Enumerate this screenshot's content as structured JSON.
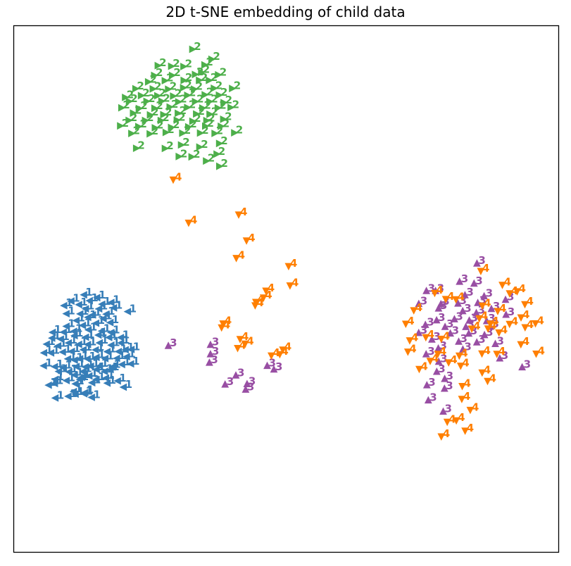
{
  "chart_data": {
    "type": "scatter",
    "title": "2D t-SNE embedding of child data",
    "xlabel": "",
    "ylabel": "",
    "xticks": "none",
    "yticks": "none",
    "grid": false,
    "xlim": [
      0,
      1
    ],
    "ylim": [
      0,
      1
    ],
    "legend": "none",
    "series": [
      {
        "label_text": "1",
        "color": "#377eb8",
        "marker": "triangle-left",
        "points": [
          [
            0.1428,
            0.7061
          ],
          [
            0.0759,
            0.7073
          ],
          [
            0.0997,
            0.7042
          ],
          [
            0.1289,
            0.6992
          ],
          [
            0.1129,
            0.6999
          ],
          [
            0.1306,
            0.6969
          ],
          [
            0.1097,
            0.695
          ],
          [
            0.2013,
            0.6868
          ],
          [
            0.0637,
            0.6829
          ],
          [
            0.0749,
            0.6796
          ],
          [
            0.1129,
            0.6803
          ],
          [
            0.0759,
            0.6719
          ],
          [
            0.1435,
            0.6783
          ],
          [
            0.1716,
            0.679
          ],
          [
            0.1905,
            0.6748
          ],
          [
            0.0965,
            0.6741
          ],
          [
            0.1211,
            0.6722
          ],
          [
            0.1515,
            0.672
          ],
          [
            0.1688,
            0.6695
          ],
          [
            0.1245,
            0.6681
          ],
          [
            0.1383,
            0.6653
          ],
          [
            0.1115,
            0.6636
          ],
          [
            0.0822,
            0.6567
          ],
          [
            0.1013,
            0.6576
          ],
          [
            0.1271,
            0.6569
          ],
          [
            0.1517,
            0.6531
          ],
          [
            0.1668,
            0.6569
          ],
          [
            0.1774,
            0.6533
          ],
          [
            0.0546,
            0.6461
          ],
          [
            0.0749,
            0.6478
          ],
          [
            0.0912,
            0.6499
          ],
          [
            0.1147,
            0.6475
          ],
          [
            0.1313,
            0.6483
          ],
          [
            0.1412,
            0.647
          ],
          [
            0.1576,
            0.6465
          ],
          [
            0.1802,
            0.6485
          ],
          [
            0.1983,
            0.6437
          ],
          [
            0.2148,
            0.6425
          ],
          [
            0.0991,
            0.6329
          ],
          [
            0.1115,
            0.6353
          ],
          [
            0.1214,
            0.6327
          ],
          [
            0.1351,
            0.6329
          ],
          [
            0.1515,
            0.6301
          ],
          [
            0.1676,
            0.6322
          ],
          [
            0.189,
            0.6318
          ],
          [
            0.2073,
            0.6287
          ],
          [
            0.0551,
            0.6214
          ],
          [
            0.0681,
            0.6216
          ],
          [
            0.0895,
            0.62
          ],
          [
            0.1061,
            0.6186
          ],
          [
            0.1275,
            0.6155
          ],
          [
            0.15,
            0.6158
          ],
          [
            0.1715,
            0.6191
          ],
          [
            0.1923,
            0.619
          ],
          [
            0.2049,
            0.6156
          ],
          [
            0.2157,
            0.615
          ],
          [
            0.06,
            0.605
          ],
          [
            0.0811,
            0.6081
          ],
          [
            0.1004,
            0.6025
          ],
          [
            0.1193,
            0.6054
          ],
          [
            0.1357,
            0.6056
          ],
          [
            0.1573,
            0.6024
          ],
          [
            0.1786,
            0.6068
          ],
          [
            0.1967,
            0.6025
          ],
          [
            0.0698,
            0.5934
          ],
          [
            0.0859,
            0.5955
          ],
          [
            0.1112,
            0.5888
          ],
          [
            0.1319,
            0.5917
          ],
          [
            0.1551,
            0.5877
          ],
          [
            0.1747,
            0.5923
          ],
          [
            0.1963,
            0.5924
          ],
          [
            0.0709,
            0.5825
          ],
          [
            0.0911,
            0.5822
          ],
          [
            0.1099,
            0.5805
          ],
          [
            0.1368,
            0.5777
          ],
          [
            0.1613,
            0.5801
          ],
          [
            0.1786,
            0.5828
          ],
          [
            0.0962,
            0.571
          ],
          [
            0.1264,
            0.5694
          ],
          [
            0.1508,
            0.565
          ],
          [
            0.177,
            0.5638
          ],
          [
            0.1146,
            0.5601
          ],
          [
            0.136,
            0.554
          ],
          [
            0.1644,
            0.5563
          ],
          [
            0.0963,
            0.547
          ],
          [
            0.1216,
            0.5474
          ],
          [
            0.1447,
            0.5494
          ],
          [
            0.1696,
            0.5478
          ],
          [
            0.209,
            0.543
          ],
          [
            0.1318,
            0.5378
          ],
          [
            0.1563,
            0.5377
          ],
          [
            0.1834,
            0.5359
          ],
          [
            0.092,
            0.5316
          ],
          [
            0.1194,
            0.5298
          ],
          [
            0.1619,
            0.5289
          ],
          [
            0.1052,
            0.523
          ],
          [
            0.139,
            0.5222
          ],
          [
            0.1786,
            0.5257
          ],
          [
            0.1527,
            0.5164
          ],
          [
            0.1285,
            0.5111
          ]
        ]
      },
      {
        "label_text": "2",
        "color": "#4daf4a",
        "marker": "triangle-right",
        "points": [
          [
            0.3275,
            0.0442
          ],
          [
            0.3627,
            0.063
          ],
          [
            0.264,
            0.0752
          ],
          [
            0.2888,
            0.0765
          ],
          [
            0.3113,
            0.077
          ],
          [
            0.35,
            0.0739
          ],
          [
            0.3438,
            0.0879
          ],
          [
            0.2574,
            0.0938
          ],
          [
            0.2903,
            0.0939
          ],
          [
            0.3325,
            0.0921
          ],
          [
            0.3749,
            0.0928
          ],
          [
            0.2463,
            0.1061
          ],
          [
            0.277,
            0.1039
          ],
          [
            0.3117,
            0.1033
          ],
          [
            0.3399,
            0.1031
          ],
          [
            0.3581,
            0.1034
          ],
          [
            0.223,
            0.1191
          ],
          [
            0.2549,
            0.1196
          ],
          [
            0.283,
            0.1201
          ],
          [
            0.3108,
            0.1174
          ],
          [
            0.3307,
            0.1199
          ],
          [
            0.3671,
            0.1183
          ],
          [
            0.4006,
            0.1187
          ],
          [
            0.204,
            0.1358
          ],
          [
            0.2333,
            0.1323
          ],
          [
            0.2633,
            0.1325
          ],
          [
            0.2922,
            0.1332
          ],
          [
            0.3182,
            0.1317
          ],
          [
            0.3503,
            0.1307
          ],
          [
            0.3765,
            0.1313
          ],
          [
            0.2111,
            0.1433
          ],
          [
            0.2434,
            0.1431
          ],
          [
            0.2708,
            0.1428
          ],
          [
            0.3018,
            0.1442
          ],
          [
            0.3326,
            0.1436
          ],
          [
            0.3589,
            0.1436
          ],
          [
            0.385,
            0.1456
          ],
          [
            0.1971,
            0.1554
          ],
          [
            0.2293,
            0.1568
          ],
          [
            0.2579,
            0.1564
          ],
          [
            0.2859,
            0.1539
          ],
          [
            0.3181,
            0.1548
          ],
          [
            0.346,
            0.1559
          ],
          [
            0.3743,
            0.1557
          ],
          [
            0.3979,
            0.1548
          ],
          [
            0.2186,
            0.1656
          ],
          [
            0.2498,
            0.169
          ],
          [
            0.2743,
            0.1686
          ],
          [
            0.3009,
            0.1658
          ],
          [
            0.3346,
            0.1672
          ],
          [
            0.3592,
            0.1677
          ],
          [
            0.2106,
            0.1794
          ],
          [
            0.2408,
            0.1795
          ],
          [
            0.2695,
            0.1795
          ],
          [
            0.299,
            0.1789
          ],
          [
            0.3277,
            0.181
          ],
          [
            0.3534,
            0.1798
          ],
          [
            0.3843,
            0.1773
          ],
          [
            0.195,
            0.1898
          ],
          [
            0.2283,
            0.1911
          ],
          [
            0.2587,
            0.1935
          ],
          [
            0.2885,
            0.1928
          ],
          [
            0.32,
            0.1917
          ],
          [
            0.3512,
            0.1902
          ],
          [
            0.38,
            0.1906
          ],
          [
            0.2155,
            0.2043
          ],
          [
            0.2493,
            0.2049
          ],
          [
            0.2787,
            0.2023
          ],
          [
            0.3091,
            0.2038
          ],
          [
            0.3418,
            0.2035
          ],
          [
            0.3684,
            0.2041
          ],
          [
            0.4045,
            0.203
          ],
          [
            0.2243,
            0.2324
          ],
          [
            0.2771,
            0.2328
          ],
          [
            0.3068,
            0.2261
          ],
          [
            0.3405,
            0.2301
          ],
          [
            0.3769,
            0.2233
          ],
          [
            0.3261,
            0.2487
          ],
          [
            0.3722,
            0.2435
          ],
          [
            0.3026,
            0.248
          ],
          [
            0.3528,
            0.2566
          ],
          [
            0.3771,
            0.2667
          ]
        ]
      },
      {
        "label_text": "3",
        "color": "#984ea3",
        "marker": "triangle-up",
        "points": [
          [
            0.8505,
            0.4514
          ],
          [
            0.8185,
            0.4861
          ],
          [
            0.8451,
            0.4897
          ],
          [
            0.7576,
            0.5038
          ],
          [
            0.7744,
            0.5038
          ],
          [
            0.8284,
            0.5117
          ],
          [
            0.8637,
            0.5136
          ],
          [
            0.903,
            0.5204
          ],
          [
            0.7436,
            0.5283
          ],
          [
            0.7842,
            0.5288
          ],
          [
            0.8156,
            0.5276
          ],
          [
            0.852,
            0.5265
          ],
          [
            0.877,
            0.5379
          ],
          [
            0.7799,
            0.537
          ],
          [
            0.8243,
            0.5421
          ],
          [
            0.8493,
            0.5455
          ],
          [
            0.9039,
            0.5488
          ],
          [
            0.809,
            0.5574
          ],
          [
            0.7763,
            0.5594
          ],
          [
            0.8363,
            0.56
          ],
          [
            0.8683,
            0.5609
          ],
          [
            0.7558,
            0.5681
          ],
          [
            0.7918,
            0.5719
          ],
          [
            0.83,
            0.5721
          ],
          [
            0.8751,
            0.5716
          ],
          [
            0.7435,
            0.5836
          ],
          [
            0.8015,
            0.5845
          ],
          [
            0.8354,
            0.5847
          ],
          [
            0.8643,
            0.5876
          ],
          [
            0.7676,
            0.596
          ],
          [
            0.817,
            0.6
          ],
          [
            0.8502,
            0.6013
          ],
          [
            0.8842,
            0.6044
          ],
          [
            0.7794,
            0.613
          ],
          [
            0.8246,
            0.615
          ],
          [
            0.7571,
            0.624
          ],
          [
            0.8924,
            0.6318
          ],
          [
            0.7802,
            0.6381
          ],
          [
            0.9335,
            0.6487
          ],
          [
            0.7766,
            0.6573
          ],
          [
            0.7912,
            0.6708
          ],
          [
            0.7585,
            0.6829
          ],
          [
            0.7908,
            0.6894
          ],
          [
            0.7611,
            0.7116
          ],
          [
            0.7885,
            0.7331
          ],
          [
            0.2834,
            0.608
          ],
          [
            0.3608,
            0.606
          ],
          [
            0.3608,
            0.624
          ],
          [
            0.3588,
            0.64
          ],
          [
            0.4651,
            0.6461
          ],
          [
            0.4773,
            0.653
          ],
          [
            0.4075,
            0.6644
          ],
          [
            0.3877,
            0.6815
          ],
          [
            0.4281,
            0.6807
          ],
          [
            0.4255,
            0.6913
          ]
        ]
      },
      {
        "label_text": "4",
        "color": "#ff7f00",
        "marker": "triangle-down",
        "points": [
          [
            0.2924,
            0.2922
          ],
          [
            0.4127,
            0.3586
          ],
          [
            0.3207,
            0.3742
          ],
          [
            0.4271,
            0.408
          ],
          [
            0.4083,
            0.4412
          ],
          [
            0.5044,
            0.4566
          ],
          [
            0.507,
            0.4934
          ],
          [
            0.4627,
            0.5033
          ],
          [
            0.4584,
            0.5165
          ],
          [
            0.4443,
            0.5248
          ],
          [
            0.4429,
            0.5313
          ],
          [
            0.3839,
            0.5657
          ],
          [
            0.3812,
            0.5733
          ],
          [
            0.4153,
            0.5954
          ],
          [
            0.4246,
            0.6042
          ],
          [
            0.4108,
            0.6125
          ],
          [
            0.4938,
            0.6154
          ],
          [
            0.4882,
            0.6241
          ],
          [
            0.4727,
            0.6267
          ],
          [
            0.8576,
            0.4659
          ],
          [
            0.8971,
            0.4922
          ],
          [
            0.9243,
            0.5046
          ],
          [
            0.9105,
            0.5085
          ],
          [
            0.7728,
            0.5076
          ],
          [
            0.7932,
            0.5193
          ],
          [
            0.8119,
            0.5198
          ],
          [
            0.9386,
            0.5291
          ],
          [
            0.8604,
            0.5318
          ],
          [
            0.8886,
            0.5421
          ],
          [
            0.7344,
            0.5407
          ],
          [
            0.9314,
            0.5542
          ],
          [
            0.8547,
            0.556
          ],
          [
            0.7196,
            0.5662
          ],
          [
            0.8746,
            0.566
          ],
          [
            0.9103,
            0.5666
          ],
          [
            0.9579,
            0.5655
          ],
          [
            0.939,
            0.573
          ],
          [
            0.841,
            0.5755
          ],
          [
            0.8707,
            0.5752
          ],
          [
            0.8909,
            0.5829
          ],
          [
            0.7565,
            0.5918
          ],
          [
            0.7269,
            0.5978
          ],
          [
            0.785,
            0.5949
          ],
          [
            0.9312,
            0.6052
          ],
          [
            0.7236,
            0.6193
          ],
          [
            0.7786,
            0.6235
          ],
          [
            0.818,
            0.6269
          ],
          [
            0.8596,
            0.6227
          ],
          [
            0.887,
            0.6235
          ],
          [
            0.9592,
            0.6232
          ],
          [
            0.7646,
            0.637
          ],
          [
            0.7984,
            0.6398
          ],
          [
            0.8206,
            0.646
          ],
          [
            0.7444,
            0.6524
          ],
          [
            0.86,
            0.659
          ],
          [
            0.87,
            0.6751
          ],
          [
            0.8234,
            0.6848
          ],
          [
            0.8227,
            0.7092
          ],
          [
            0.8381,
            0.7301
          ],
          [
            0.8125,
            0.7499
          ],
          [
            0.7958,
            0.7527
          ],
          [
            0.8287,
            0.7696
          ],
          [
            0.785,
            0.7805
          ]
        ]
      }
    ]
  }
}
